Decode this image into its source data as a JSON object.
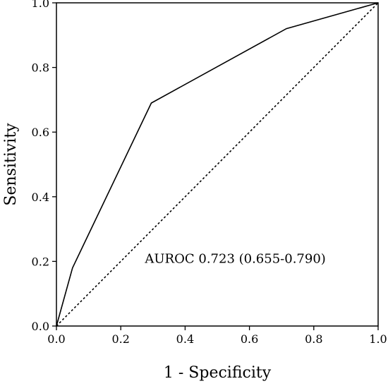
{
  "chart_data": {
    "type": "line",
    "title": "",
    "xlabel": "1 - Specificity",
    "ylabel": "Sensitivity",
    "xlim": [
      0.0,
      1.0
    ],
    "ylim": [
      0.0,
      1.0
    ],
    "xticks": [
      "0.0",
      "0.2",
      "0.4",
      "0.6",
      "0.8",
      "1.0"
    ],
    "yticks": [
      "0.0",
      "0.2",
      "0.4",
      "0.6",
      "0.8",
      "1.0"
    ],
    "grid": false,
    "legend": "none",
    "series": [
      {
        "style": "solid",
        "color": "#000000",
        "x": [
          0.0,
          0.05,
          0.295,
          0.715,
          1.0
        ],
        "y": [
          0.0,
          0.18,
          0.69,
          0.92,
          1.0
        ]
      },
      {
        "style": "dotted",
        "color": "#000000",
        "x": [
          0.0,
          1.0
        ],
        "y": [
          0.0,
          1.0
        ]
      }
    ],
    "annotations": [
      {
        "text": "AUROC 0.723 (0.655-0.790)",
        "x": 0.275,
        "y": 0.195
      }
    ]
  }
}
